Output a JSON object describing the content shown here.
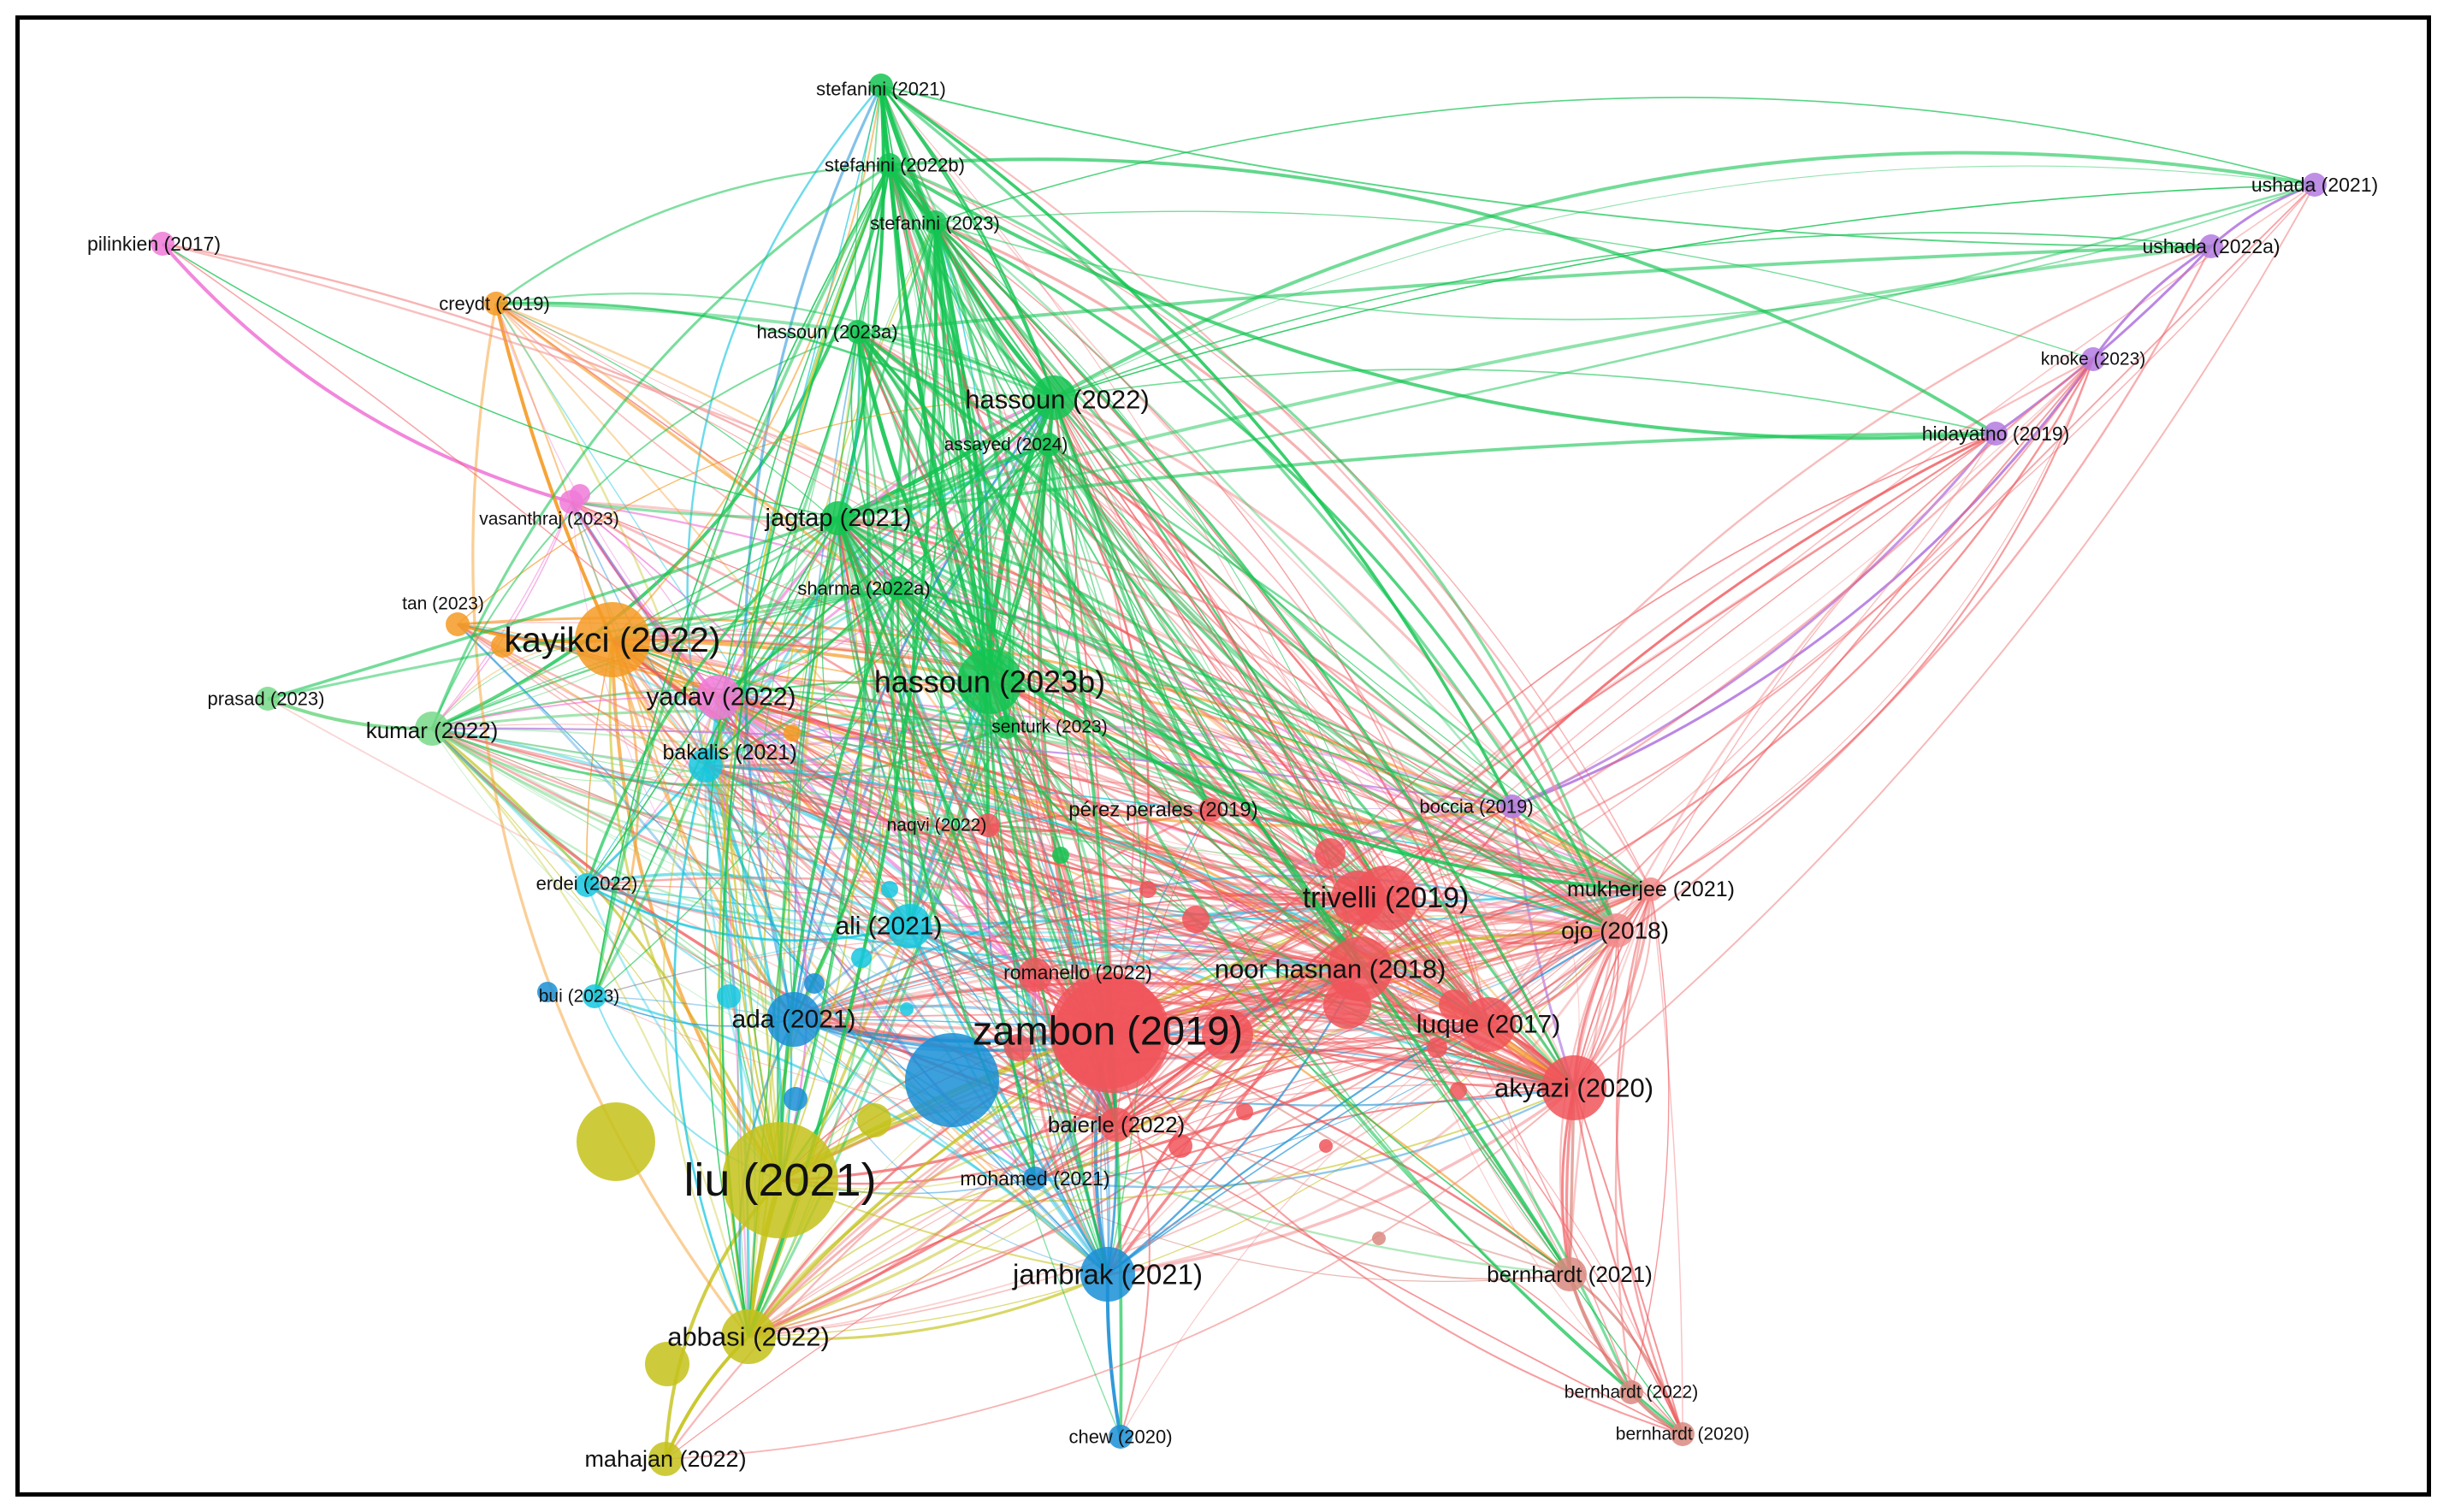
{
  "network": {
    "clusters": {
      "red": "#f0555a",
      "salmon": "#f28c8c",
      "green": "#14c452",
      "lightgreen": "#78d98a",
      "blue": "#1a8fd6",
      "cyan": "#16c7e0",
      "olive": "#c4c21a",
      "orange": "#f59a23",
      "pink": "#f07ad8",
      "purple": "#b47ae0",
      "brown": "#d98a80"
    },
    "nodes": [
      {
        "id": "stefanini2021",
        "label": "stefanini (2021)",
        "cluster": "green",
        "weight": 1
      },
      {
        "id": "stefanini2022b",
        "label": "stefanini (2022b)",
        "cluster": "green",
        "weight": 1
      },
      {
        "id": "stefanini2023",
        "label": "stefanini (2023)",
        "cluster": "green",
        "weight": 1
      },
      {
        "id": "pilinkien2017",
        "label": "pilinkien (2017)",
        "cluster": "pink",
        "weight": 1
      },
      {
        "id": "creydt2019",
        "label": "creydt (2019)",
        "cluster": "orange",
        "weight": 1
      },
      {
        "id": "hassoun2023a",
        "label": "hassoun (2023a)",
        "cluster": "green",
        "weight": 1
      },
      {
        "id": "hassoun2022",
        "label": "hassoun (2022)",
        "cluster": "green",
        "weight": 3
      },
      {
        "id": "assayed2024",
        "label": "assayed (2024)",
        "cluster": "green",
        "weight": 1
      },
      {
        "id": "jagtap2021",
        "label": "jagtap (2021)",
        "cluster": "green",
        "weight": 2
      },
      {
        "id": "vasanthraj2023",
        "label": "vasanthraj (2023)",
        "cluster": "pink",
        "weight": 1
      },
      {
        "id": "sharma2022a",
        "label": "sharma (2022a)",
        "cluster": "green",
        "weight": 1
      },
      {
        "id": "tan2023",
        "label": "tan (2023)",
        "cluster": "orange",
        "weight": 1
      },
      {
        "id": "kayikci2022",
        "label": "kayikci (2022)",
        "cluster": "orange",
        "weight": 6
      },
      {
        "id": "hassoun2023b",
        "label": "hassoun (2023b)",
        "cluster": "green",
        "weight": 5
      },
      {
        "id": "yadav2022",
        "label": "yadav (2022)",
        "cluster": "pink",
        "weight": 3
      },
      {
        "id": "prasad2023",
        "label": "prasad (2023)",
        "cluster": "lightgreen",
        "weight": 1
      },
      {
        "id": "kumar2022",
        "label": "kumar (2022)",
        "cluster": "lightgreen",
        "weight": 2
      },
      {
        "id": "senturk2023",
        "label": "senturk (2023)",
        "cluster": "green",
        "weight": 1
      },
      {
        "id": "bakalis2021",
        "label": "bakalis (2021)",
        "cluster": "cyan",
        "weight": 2
      },
      {
        "id": "perezperales2019",
        "label": "pérez perales (2019)",
        "cluster": "red",
        "weight": 1
      },
      {
        "id": "naqvi2022",
        "label": "naqvi (2022)",
        "cluster": "red",
        "weight": 1
      },
      {
        "id": "boccia2019",
        "label": "boccia (2019)",
        "cluster": "purple",
        "weight": 1
      },
      {
        "id": "ushada2021",
        "label": "ushada (2021)",
        "cluster": "purple",
        "weight": 1
      },
      {
        "id": "ushada2022a",
        "label": "ushada (2022a)",
        "cluster": "purple",
        "weight": 1
      },
      {
        "id": "knoke2023",
        "label": "knoke (2023)",
        "cluster": "purple",
        "weight": 1
      },
      {
        "id": "hidayatno2019",
        "label": "hidayatno (2019)",
        "cluster": "purple",
        "weight": 1
      },
      {
        "id": "trivelli2019",
        "label": "trivelli (2019)",
        "cluster": "red",
        "weight": 5
      },
      {
        "id": "mukherjee2021",
        "label": "mukherjee (2021)",
        "cluster": "salmon",
        "weight": 1
      },
      {
        "id": "ojo2018",
        "label": "ojo (2018)",
        "cluster": "salmon",
        "weight": 2
      },
      {
        "id": "erdei2022",
        "label": "erdei (2022)",
        "cluster": "cyan",
        "weight": 1
      },
      {
        "id": "ali2021",
        "label": "ali (2021)",
        "cluster": "cyan",
        "weight": 3
      },
      {
        "id": "noorhasnan2018",
        "label": "noor hasnan (2018)",
        "cluster": "red",
        "weight": 5
      },
      {
        "id": "romanello2022",
        "label": "romanello (2022)",
        "cluster": "red",
        "weight": 2
      },
      {
        "id": "bui2023",
        "label": "bui (2023)",
        "cluster": "cyan",
        "weight": 1
      },
      {
        "id": "ada2021",
        "label": "ada (2021)",
        "cluster": "blue",
        "weight": 4
      },
      {
        "id": "zambon2019",
        "label": "zambon (2019)",
        "cluster": "red",
        "weight": 10
      },
      {
        "id": "luque2017",
        "label": "luque (2017)",
        "cluster": "red",
        "weight": 4
      },
      {
        "id": "akyazi2020",
        "label": "akyazi (2020)",
        "cluster": "red",
        "weight": 5
      },
      {
        "id": "baierle2022",
        "label": "baierle (2022)",
        "cluster": "red",
        "weight": 2
      },
      {
        "id": "liu2021",
        "label": "liu (2021)",
        "cluster": "olive",
        "weight": 10
      },
      {
        "id": "mohamed2021",
        "label": "mohamed (2021)",
        "cluster": "blue",
        "weight": 1
      },
      {
        "id": "jambrak2021",
        "label": "jambrak (2021)",
        "cluster": "blue",
        "weight": 4
      },
      {
        "id": "bernhardt2021",
        "label": "bernhardt (2021)",
        "cluster": "brown",
        "weight": 2
      },
      {
        "id": "abbasi2022",
        "label": "abbasi (2022)",
        "cluster": "olive",
        "weight": 4
      },
      {
        "id": "bernhardt2022",
        "label": "bernhardt (2022)",
        "cluster": "brown",
        "weight": 1
      },
      {
        "id": "bernhardt2020",
        "label": "bernhardt (2020)",
        "cluster": "brown",
        "weight": 1
      },
      {
        "id": "chew2020",
        "label": "chew (2020)",
        "cluster": "blue",
        "weight": 1
      },
      {
        "id": "mahajan2022",
        "label": "mahajan (2022)",
        "cluster": "olive",
        "weight": 2
      }
    ]
  }
}
